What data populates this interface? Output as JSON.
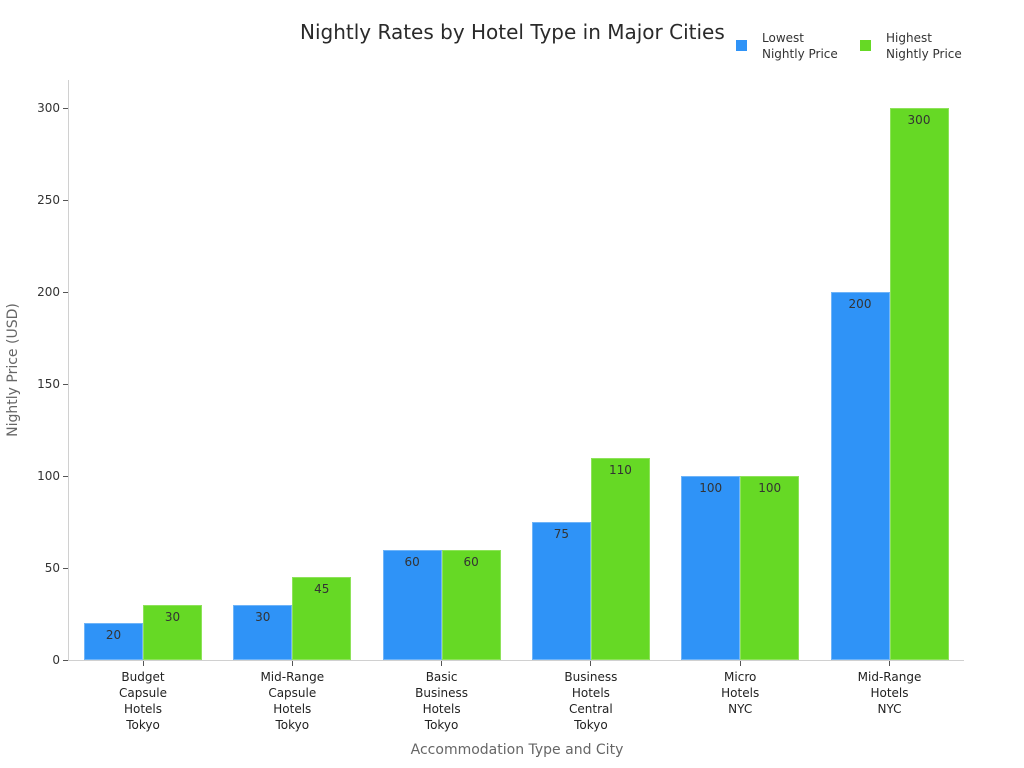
{
  "chart_data": {
    "type": "bar",
    "title": "Nightly Rates by Hotel Type in Major Cities",
    "xlabel": "Accommodation Type and City",
    "ylabel": "Nightly Price (USD)",
    "ylim": [
      0,
      300
    ],
    "yticks": [
      0,
      50,
      100,
      150,
      200,
      250,
      300
    ],
    "grid": false,
    "legend_position": "top-right",
    "categories": [
      "Budget\nCapsule\nHotels\nTokyo",
      "Mid-Range\nCapsule\nHotels\nTokyo",
      "Basic\nBusiness\nHotels\nTokyo",
      "Business\nHotels\nCentral\nTokyo",
      "Micro\nHotels\nNYC",
      "Mid-Range\nHotels\nNYC"
    ],
    "series": [
      {
        "name": "Lowest Nightly Price",
        "color": "#2f93f7",
        "values": [
          20,
          30,
          60,
          75,
          100,
          200
        ]
      },
      {
        "name": "Highest Nightly Price",
        "color": "#66d925",
        "values": [
          30,
          45,
          60,
          110,
          100,
          300
        ]
      }
    ]
  },
  "legend": [
    {
      "label": "Lowest\nNightly Price",
      "color": "#2f93f7"
    },
    {
      "label": "Highest\nNightly Price",
      "color": "#66d925"
    }
  ]
}
